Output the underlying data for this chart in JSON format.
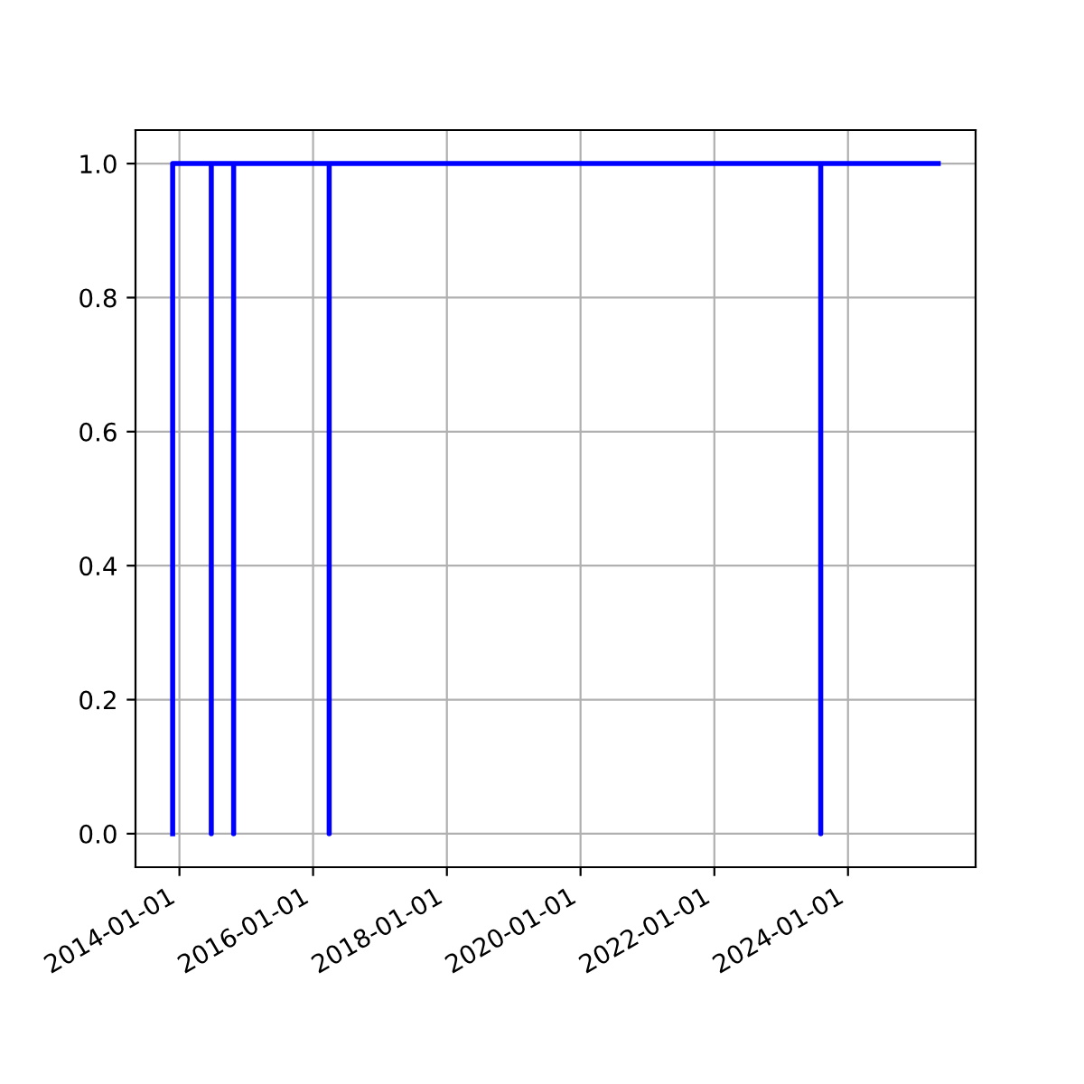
{
  "chart_data": {
    "type": "line",
    "x": [
      "2013-11-25",
      "2013-11-25",
      "2014-06-24",
      "2014-06-24",
      "2014-06-24",
      "2014-10-24",
      "2014-10-24",
      "2014-10-24",
      "2016-03-29",
      "2016-03-29",
      "2016-03-29",
      "2023-08-05",
      "2023-08-05",
      "2023-08-05",
      "2025-05-08"
    ],
    "series": [
      {
        "color": "#0000ff",
        "values": [
          0,
          1,
          1,
          0,
          1,
          1,
          0,
          1,
          1,
          0,
          1,
          1,
          0,
          1,
          1
        ]
      }
    ],
    "xlim": [
      "2013-05-06",
      "2025-11-28"
    ],
    "xticks": [
      {
        "value": "2014-01-01",
        "label": "2014-01-01"
      },
      {
        "value": "2016-01-01",
        "label": "2016-01-01"
      },
      {
        "value": "2018-01-01",
        "label": "2018-01-01"
      },
      {
        "value": "2020-01-01",
        "label": "2020-01-01"
      },
      {
        "value": "2022-01-01",
        "label": "2022-01-01"
      },
      {
        "value": "2024-01-01",
        "label": "2024-01-01"
      }
    ],
    "ylim": [
      -0.05,
      1.05
    ],
    "yticks": [
      {
        "value": 0,
        "label": "0.0"
      },
      {
        "value": 0.2,
        "label": "0.2"
      },
      {
        "value": 0.4,
        "label": "0.4"
      },
      {
        "value": 0.6,
        "label": "0.6"
      },
      {
        "value": 0.8,
        "label": "0.8"
      },
      {
        "value": 1,
        "label": "1.0"
      }
    ],
    "grid": true,
    "line_style": "solid"
  }
}
